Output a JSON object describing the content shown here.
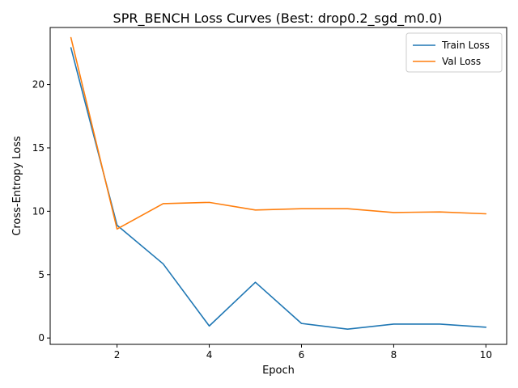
{
  "chart_data": {
    "type": "line",
    "title": "SPR_BENCH Loss Curves (Best: drop0.2_sgd_m0.0)",
    "xlabel": "Epoch",
    "ylabel": "Cross-Entropy Loss",
    "x": [
      1,
      2,
      3,
      4,
      5,
      6,
      7,
      8,
      9,
      10
    ],
    "xlim": [
      0.55,
      10.45
    ],
    "ylim": [
      -0.5,
      24.5
    ],
    "xticks": [
      2,
      4,
      6,
      8,
      10
    ],
    "yticks": [
      0,
      5,
      10,
      15,
      20
    ],
    "grid": false,
    "legend_position": "top-right",
    "series": [
      {
        "name": "Train Loss",
        "color": "#1f77b4",
        "values": [
          22.9,
          8.9,
          5.85,
          0.95,
          4.4,
          1.15,
          0.7,
          1.1,
          1.1,
          0.85
        ]
      },
      {
        "name": "Val Loss",
        "color": "#ff7f0e",
        "values": [
          23.7,
          8.6,
          10.6,
          10.7,
          10.1,
          10.2,
          10.2,
          9.9,
          9.95,
          9.8
        ]
      }
    ]
  }
}
